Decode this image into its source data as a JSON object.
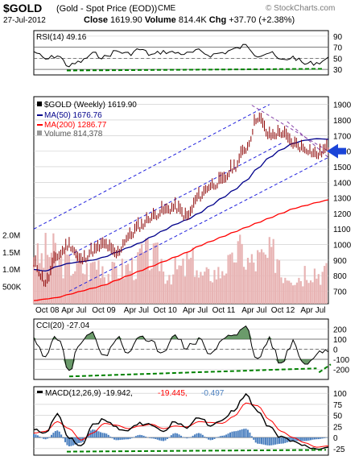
{
  "header": {
    "symbol": "$GOLD",
    "description": "(Gold - Spot Price (EOD))",
    "exchange": "CME",
    "logo": "© StockCharts.com",
    "date": "27-Jul-2012",
    "close_label": "Close",
    "close_value": "1619.90",
    "volume_label": "Volume",
    "volume_value": "814.4K",
    "chg_label": "Chg",
    "chg_value": "+37.70 (+2.38%)"
  },
  "colors": {
    "price_bar": "#8b0000",
    "ma50": "#00008b",
    "ma200": "#ff0000",
    "channel": "#2222dd",
    "volume": "#e8b4b4",
    "support": "#008000",
    "arrow": "#1a44d8",
    "cci_fill": "#3a7a3a",
    "macd_hist": "#4a7fbf"
  },
  "chart_data": [
    {
      "type": "line",
      "panel": "rsi",
      "legend": "RSI(14) 49.16",
      "ylim": [
        20,
        100
      ],
      "yticks": [
        "90",
        "70",
        "50",
        "30"
      ],
      "reference_lines": [
        70,
        30,
        50
      ],
      "x": [
        0,
        10,
        20,
        30,
        40,
        50,
        60,
        70,
        80,
        90,
        100,
        110,
        120,
        130,
        140,
        150,
        160,
        170,
        180,
        190,
        200,
        210,
        220,
        230,
        240,
        250
      ],
      "values": [
        62,
        48,
        55,
        36,
        44,
        58,
        52,
        63,
        58,
        66,
        56,
        62,
        60,
        58,
        63,
        56,
        60,
        66,
        73,
        56,
        60,
        46,
        52,
        40,
        42,
        49
      ]
    },
    {
      "type": "line",
      "panel": "price",
      "legend": {
        "title": "$GOLD (Weekly) 1619.90",
        "ma50": "MA(50) 1676.76",
        "ma200": "MA(200) 1286.77",
        "volume": "Volume 814,378"
      },
      "ylim": [
        620,
        1950
      ],
      "yticks": [
        "1900",
        "1800",
        "1700",
        "1600",
        "1500",
        "1400",
        "1300",
        "1200",
        "1100",
        "1000",
        "900",
        "800",
        "700"
      ],
      "volume_ticks": [
        "2.0M",
        "1.5M",
        "1.0M",
        "500K"
      ],
      "volume_lim": [
        0,
        2500000
      ],
      "xtick_labels": [
        "Oct 08",
        "Apr Jul",
        "Oct 09",
        "Apr Jul",
        "Oct 10",
        "Apr Jul",
        "Oct 11",
        "Apr Jul",
        "Oct 12",
        "Apr Jul"
      ],
      "x": [
        0,
        10,
        20,
        30,
        40,
        50,
        60,
        70,
        80,
        90,
        100,
        110,
        120,
        130,
        140,
        150,
        160,
        170,
        180,
        190,
        200,
        210,
        220,
        230,
        240,
        250
      ],
      "price": [
        880,
        760,
        930,
        1000,
        900,
        960,
        1000,
        940,
        1050,
        1120,
        1180,
        1220,
        1240,
        1180,
        1310,
        1380,
        1410,
        1500,
        1620,
        1820,
        1700,
        1720,
        1650,
        1620,
        1580,
        1620
      ],
      "ma50": [
        840,
        830,
        860,
        880,
        890,
        900,
        920,
        950,
        980,
        1010,
        1050,
        1090,
        1130,
        1160,
        1200,
        1250,
        1300,
        1350,
        1410,
        1490,
        1560,
        1610,
        1650,
        1670,
        1680,
        1677
      ],
      "ma200": [
        640,
        650,
        660,
        680,
        700,
        720,
        740,
        770,
        800,
        830,
        860,
        890,
        920,
        950,
        990,
        1020,
        1050,
        1080,
        1110,
        1140,
        1170,
        1200,
        1230,
        1250,
        1270,
        1287
      ],
      "volume": [
        1300000,
        1500000,
        1200000,
        1100000,
        1000000,
        1200000,
        900000,
        1000000,
        1100000,
        1400000,
        1300000,
        900000,
        1000000,
        1200000,
        800000,
        900000,
        1100000,
        1500000,
        1200000,
        1300000,
        1400000,
        900000,
        800000,
        1000000,
        900000,
        814000
      ],
      "channel_upper": [
        [
          0,
          1100
        ],
        [
          200,
          1900
        ]
      ],
      "channel_mid": [
        [
          30,
          930
        ],
        [
          210,
          1650
        ]
      ],
      "channel_lower": [
        [
          30,
          700
        ],
        [
          250,
          1560
        ]
      ],
      "down_channel": [
        [
          [
            185,
            1895
          ],
          [
            250,
            1600
          ]
        ],
        [
          [
            215,
            1790
          ],
          [
            250,
            1560
          ]
        ]
      ]
    },
    {
      "type": "line",
      "panel": "cci",
      "legend": "CCI(20) -27.04",
      "ylim": [
        -300,
        300
      ],
      "yticks": [
        "200",
        "100",
        "0",
        "-100",
        "-200"
      ],
      "x": [
        0,
        10,
        20,
        30,
        40,
        50,
        60,
        70,
        80,
        90,
        100,
        110,
        120,
        130,
        140,
        150,
        160,
        170,
        180,
        190,
        200,
        210,
        220,
        230,
        240,
        250
      ],
      "values": [
        110,
        -70,
        130,
        -210,
        80,
        150,
        -60,
        120,
        -20,
        160,
        60,
        -50,
        150,
        10,
        100,
        -80,
        120,
        160,
        200,
        -100,
        90,
        -150,
        60,
        -180,
        -60,
        -27
      ]
    },
    {
      "type": "line",
      "panel": "macd",
      "legend": {
        "title": "MACD(12,26,9) -19.942,",
        "signal": "-19.445,",
        "hist": "-0.497"
      },
      "ylim": [
        -40,
        115
      ],
      "yticks": [
        "100",
        "75",
        "50",
        "25",
        "0",
        "-25"
      ],
      "x": [
        0,
        10,
        20,
        30,
        40,
        50,
        60,
        70,
        80,
        90,
        100,
        110,
        120,
        130,
        140,
        150,
        160,
        170,
        180,
        190,
        200,
        210,
        220,
        230,
        240,
        250
      ],
      "macd": [
        18,
        10,
        52,
        0,
        -18,
        28,
        42,
        22,
        16,
        32,
        28,
        12,
        36,
        22,
        46,
        28,
        36,
        62,
        98,
        58,
        22,
        0,
        -8,
        -20,
        -26,
        -20
      ],
      "signal": [
        10,
        14,
        36,
        20,
        -6,
        10,
        32,
        28,
        20,
        26,
        30,
        20,
        26,
        24,
        36,
        34,
        32,
        48,
        78,
        72,
        40,
        14,
        0,
        -12,
        -22,
        -19
      ],
      "hist": [
        8,
        -4,
        16,
        -20,
        -12,
        18,
        10,
        -6,
        -4,
        6,
        -2,
        -8,
        10,
        -2,
        10,
        -6,
        4,
        14,
        20,
        -14,
        -18,
        -14,
        -8,
        -8,
        -4,
        -0.5
      ]
    }
  ]
}
